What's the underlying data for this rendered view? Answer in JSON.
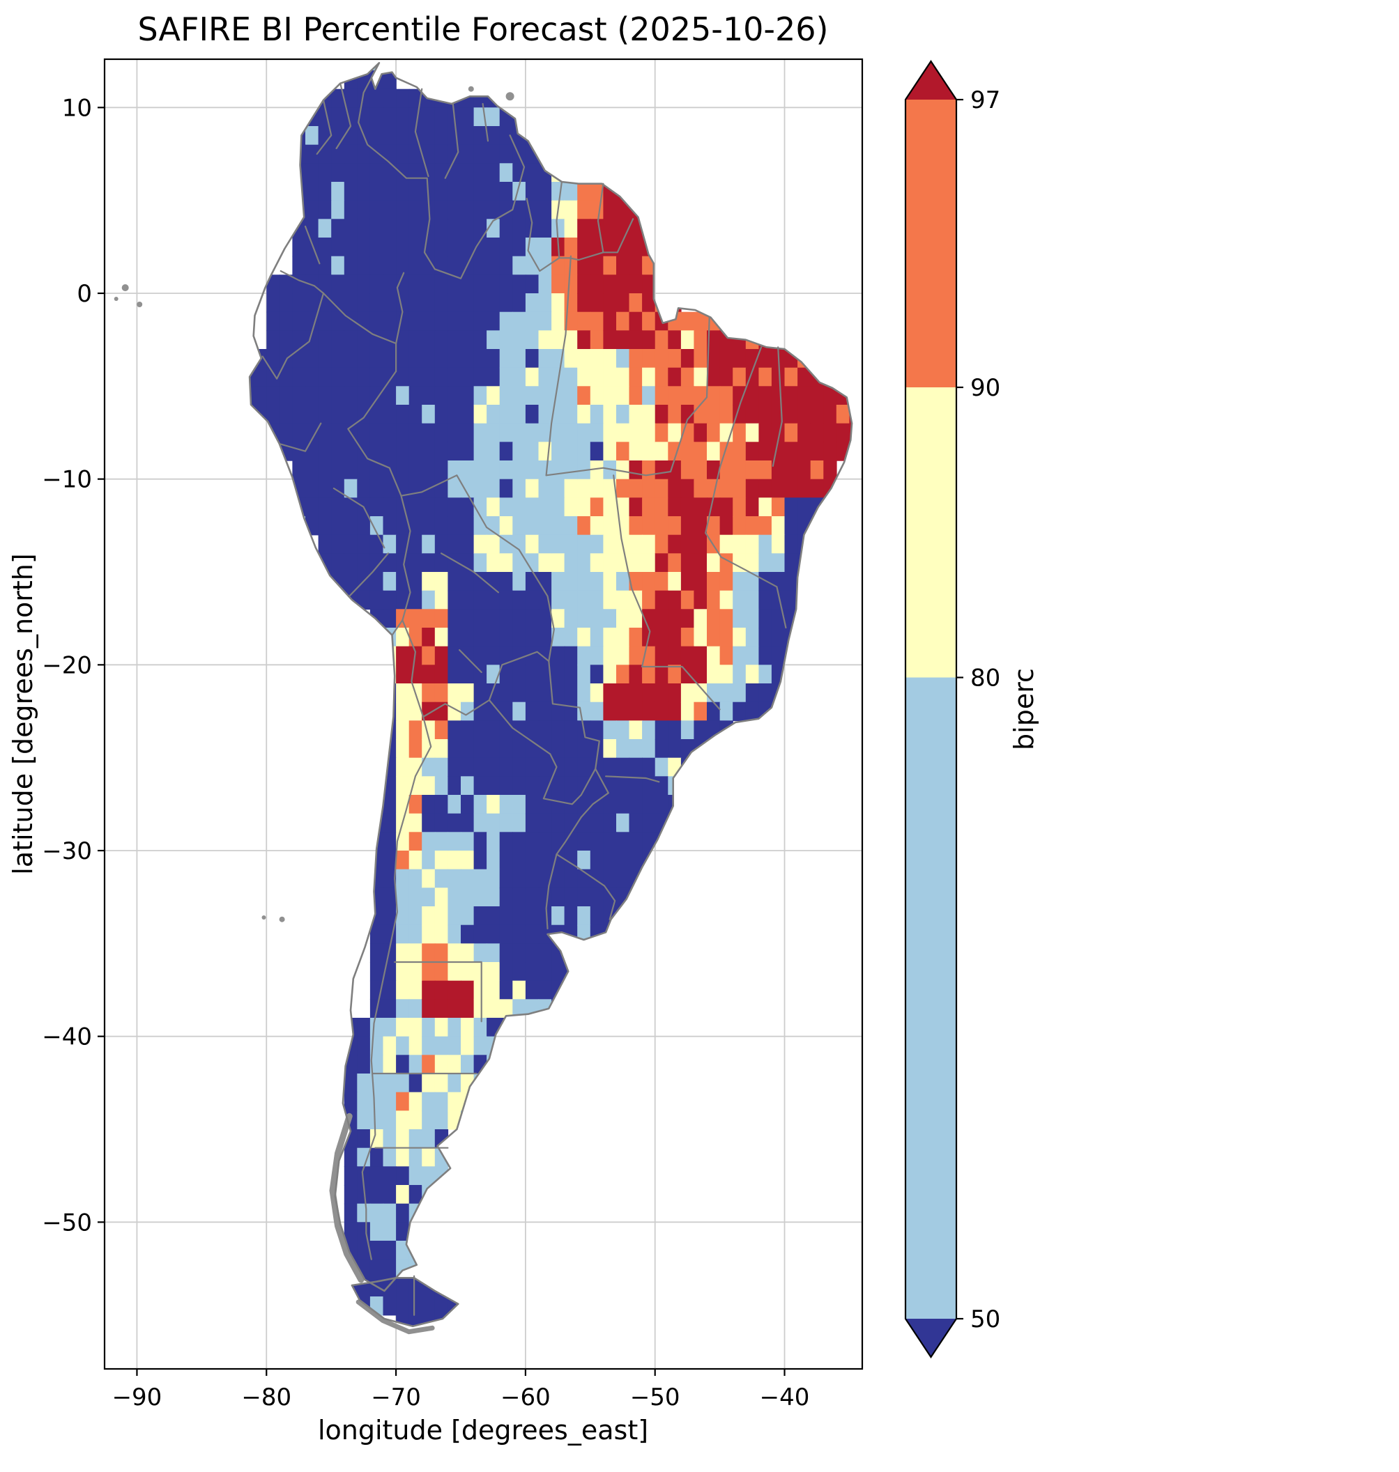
{
  "chart_data": {
    "type": "heatmap",
    "region": "South America",
    "title": "SAFIRE BI Percentile Forecast (2025-10-26)",
    "xlabel": "longitude [degrees_east]",
    "ylabel": "latitude [degrees_north]",
    "x_ticks": [
      -90,
      -80,
      -70,
      -60,
      -50,
      -40
    ],
    "x_tick_labels": [
      "−90",
      "−80",
      "−70",
      "−60",
      "−50",
      "−40"
    ],
    "y_ticks": [
      10,
      0,
      -10,
      -20,
      -30,
      -40,
      -50
    ],
    "y_tick_labels": [
      "10",
      "0",
      "−10",
      "−20",
      "−30",
      "−40",
      "−50"
    ],
    "xlim": [
      -92.5,
      -34.0
    ],
    "ylim": [
      -57.9,
      12.6
    ],
    "grid_on": true,
    "colorbar": {
      "label": "biperc",
      "boundaries": [
        50,
        80,
        90,
        97
      ],
      "tick_labels": [
        "97",
        "90",
        "80",
        "50"
      ],
      "extend": "both"
    },
    "classes": [
      {
        "id": 0,
        "range": "< 50",
        "color": "#313695"
      },
      {
        "id": 1,
        "range": "50–80",
        "color": "#a3cbe2"
      },
      {
        "id": 2,
        "range": "80–90",
        "color": "#ffffbf"
      },
      {
        "id": 3,
        "range": "90–97",
        "color": "#f4774b"
      },
      {
        "id": 4,
        "range": "> 97",
        "color": "#b2182b"
      }
    ],
    "grid": {
      "comment": "Approximate 2-degree cells read from the plot. '.'=no data/ocean, 0..4 = percentile class index (see classes).",
      "lon_start": -82,
      "lon_step": 2,
      "lat_start": 13,
      "lat_step": -2,
      "rows": [
        "....00..................",
        "..000000000.............",
        "..0000000000............",
        "..00000000001344........",
        "..00000000002444........",
        "..00000000013444........",
        ".0000000000134444.......",
        ".00000000011234443444...",
        "000000000011122333444444",
        "000000000111122233344444",
        ".00000000111112223334444",
        "..000000111112234333444.",
        "..000000011112233443200.",
        "...00000011111223432100.",
        "...0000200001122343100..",
        ".....03300001123433100..",
        ".....24400000123442100..",
        ".....0242000014442100...",
        ".....03200000011000.....",
        ".....0210000000010......",
        ".....020011000000.......",
        ".....021110000000.......",
        ".....01111000000........",
        ".....0121000000.........",
        ".....02321000...........",
        ".....01442100...........",
        "....0121110.............",
        "....011211..............",
        "....01211...............",
        "....0121................",
        "....0011................",
        "....0111................",
        "....0010................",
        "....00000...............",
        "......00................"
      ]
    }
  },
  "map_style": {
    "border_color": "#7f7f7f",
    "coast_color": "#7f7f7f",
    "no_data_color": "#909090",
    "gridline_color": "#cdcdcd",
    "background": "#ffffff"
  }
}
